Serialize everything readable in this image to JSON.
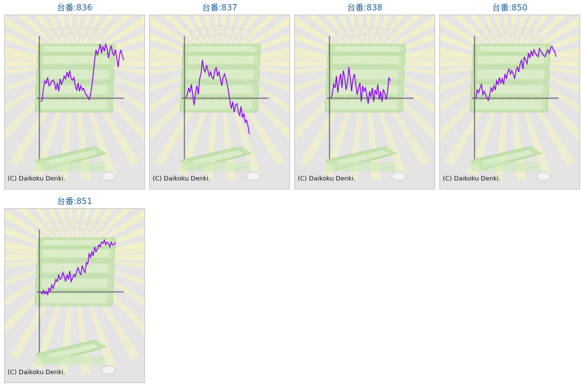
{
  "chart_data": [
    {
      "type": "line",
      "title": "台番:836",
      "copyright": "(C) Daikoku Denki.",
      "color": "#8b00ff",
      "ylim": [
        -88,
        82
      ],
      "values": [
        -5,
        -3,
        15,
        25,
        22,
        30,
        18,
        20,
        25,
        26,
        22,
        12,
        22,
        10,
        28,
        20,
        25,
        32,
        28,
        38,
        30,
        40,
        28,
        26,
        30,
        18,
        12,
        22,
        10,
        18,
        12,
        14,
        8,
        5,
        2,
        -2,
        5,
        18,
        35,
        55,
        70,
        62,
        70,
        78,
        65,
        75,
        68,
        78,
        72,
        58,
        70,
        76,
        65,
        62,
        70,
        58,
        45,
        62,
        70,
        62,
        55
      ]
    },
    {
      "type": "line",
      "title": "台番:837",
      "copyright": "(C) Daikoku Denki.",
      "color": "#8b00ff",
      "ylim": [
        -88,
        82
      ],
      "values": [
        0,
        5,
        15,
        8,
        20,
        5,
        -10,
        8,
        18,
        5,
        28,
        35,
        55,
        42,
        38,
        48,
        40,
        32,
        38,
        30,
        28,
        40,
        44,
        32,
        38,
        28,
        18,
        30,
        35,
        28,
        20,
        8,
        -5,
        -15,
        -5,
        -20,
        -10,
        -8,
        -20,
        -25,
        -12,
        -28,
        -22,
        -35,
        -32,
        -40,
        -52
      ]
    },
    {
      "type": "line",
      "title": "台番:838",
      "copyright": "(C) Daikoku Denki.",
      "color": "#8b00ff",
      "ylim": [
        -88,
        82
      ],
      "values": [
        0,
        5,
        20,
        15,
        32,
        8,
        25,
        35,
        15,
        40,
        30,
        12,
        22,
        45,
        30,
        10,
        28,
        35,
        20,
        5,
        15,
        22,
        -5,
        18,
        10,
        15,
        5,
        -8,
        10,
        2,
        15,
        -5,
        12,
        5,
        20,
        -2,
        10,
        -5,
        12,
        8,
        -2,
        8,
        30,
        25
      ]
    },
    {
      "type": "line",
      "title": "台番:850",
      "copyright": "(C) Daikoku Denki.",
      "color": "#8b00ff",
      "ylim": [
        -88,
        82
      ],
      "values": [
        0,
        12,
        8,
        15,
        20,
        5,
        10,
        5,
        0,
        -3,
        5,
        15,
        10,
        18,
        12,
        25,
        20,
        30,
        22,
        28,
        20,
        35,
        28,
        38,
        42,
        35,
        40,
        35,
        28,
        40,
        45,
        38,
        50,
        55,
        42,
        60,
        55,
        50,
        65,
        58,
        68,
        62,
        70,
        65,
        62,
        60,
        72,
        68,
        65,
        62,
        60,
        65,
        70,
        65,
        72,
        75,
        70,
        68,
        60
      ]
    },
    {
      "type": "line",
      "title": "台番:851",
      "copyright": "(C) Daikoku Denki.",
      "color": "#8b00ff",
      "ylim": [
        -88,
        82
      ],
      "values": [
        0,
        -3,
        2,
        -3,
        0,
        -4,
        5,
        2,
        10,
        5,
        12,
        18,
        15,
        25,
        18,
        20,
        28,
        22,
        15,
        25,
        18,
        30,
        15,
        20,
        25,
        22,
        30,
        35,
        28,
        25,
        38,
        32,
        28,
        42,
        40,
        55,
        50,
        58,
        52,
        65,
        58,
        62,
        68,
        65,
        72,
        70,
        75,
        68,
        72,
        70,
        65,
        72,
        68,
        68,
        72
      ]
    }
  ]
}
